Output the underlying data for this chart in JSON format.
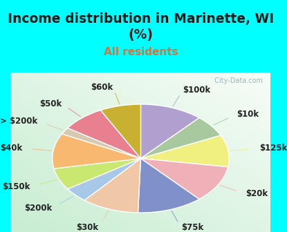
{
  "title": "Income distribution in Marinette, WI\n(%)",
  "subtitle": "All residents",
  "title_color": "#1a1a1a",
  "subtitle_color": "#cc7744",
  "background_cyan": "#00ffff",
  "watermark": "  City-Data.com",
  "slices": [
    {
      "label": "$100k",
      "value": 11.5,
      "color": "#b0a0d0",
      "label_color": "#888888"
    },
    {
      "label": "$10k",
      "value": 6.5,
      "color": "#a8c8a0",
      "label_color": "#888888"
    },
    {
      "label": "$125k",
      "value": 9.5,
      "color": "#f0f080",
      "label_color": "#888888"
    },
    {
      "label": "$20k",
      "value": 11.0,
      "color": "#f0b0b8",
      "label_color": "#888888"
    },
    {
      "label": "$75k",
      "value": 12.0,
      "color": "#8090c8",
      "label_color": "#888888"
    },
    {
      "label": "$30k",
      "value": 10.5,
      "color": "#f0c8a8",
      "label_color": "#888888"
    },
    {
      "label": "$200k",
      "value": 4.5,
      "color": "#a8c8e8",
      "label_color": "#888888"
    },
    {
      "label": "$150k",
      "value": 6.5,
      "color": "#c8e870",
      "label_color": "#888888"
    },
    {
      "label": "$40k",
      "value": 10.5,
      "color": "#f8b870",
      "label_color": "#888888"
    },
    {
      "label": "> $200k",
      "value": 2.0,
      "color": "#d8c8b0",
      "label_color": "#888888"
    },
    {
      "label": "$50k",
      "value": 8.0,
      "color": "#e88090",
      "label_color": "#888888"
    },
    {
      "label": "$60k",
      "value": 7.5,
      "color": "#c8b030",
      "label_color": "#888888"
    }
  ],
  "label_fontsize": 8.5,
  "title_fontsize": 13.5,
  "subtitle_fontsize": 11
}
